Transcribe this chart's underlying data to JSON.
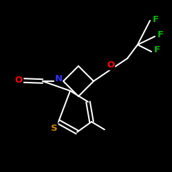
{
  "bg_color": "#000000",
  "bond_color": "#ffffff",
  "bond_width": 1.5,
  "atom_colors": {
    "O": "#ff0000",
    "N": "#3333ff",
    "S": "#cc8800",
    "F": "#00bb00",
    "C": "#ffffff"
  },
  "font_size_atom": 9.5
}
